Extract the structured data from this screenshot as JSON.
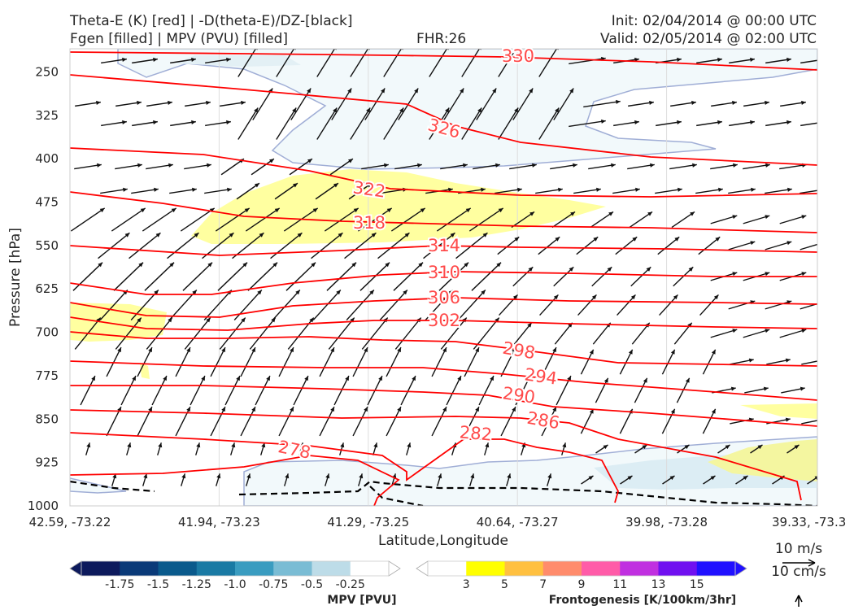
{
  "header": {
    "title_left_1": "Theta-E (K) [red] | -D(theta-E)/DZ-[black]",
    "title_left_2": "Fgen [filled] | MPV (PVU) [filled]",
    "fhr": "FHR:26",
    "init": "Init: 02/04/2014 @ 00:00 UTC",
    "valid": "Valid: 02/05/2014 @ 02:00 UTC"
  },
  "chart_data": {
    "type": "cross-section",
    "xlabel": "Latitude,Longitude",
    "ylabel": "Pressure [hPa]",
    "ylim": [
      1000,
      210
    ],
    "x_ticks": [
      "42.59, -73.22",
      "41.94, -73.23",
      "41.29, -73.25",
      "40.64, -73.27",
      "39.98, -73.28",
      "39.33, -73.3"
    ],
    "y_ticks": [
      250,
      325,
      400,
      475,
      550,
      625,
      700,
      775,
      850,
      925,
      1000
    ],
    "theta_e_contours": [
      {
        "value": 330,
        "label": "330"
      },
      {
        "value": 326,
        "label": "326"
      },
      {
        "value": 322,
        "label": "322"
      },
      {
        "value": 318,
        "label": "318"
      },
      {
        "value": 314,
        "label": "314"
      },
      {
        "value": 310,
        "label": "310"
      },
      {
        "value": 306,
        "label": "306"
      },
      {
        "value": 302,
        "label": "302"
      },
      {
        "value": 298,
        "label": "298"
      },
      {
        "value": 294,
        "label": "294"
      },
      {
        "value": 290,
        "label": "290"
      },
      {
        "value": 286,
        "label": "286"
      },
      {
        "value": 282,
        "label": "282"
      },
      {
        "value": 278,
        "label": "278"
      }
    ],
    "wind_reference": {
      "horizontal": "10 m/s",
      "vertical": "10 cm/s"
    },
    "colorbars": [
      {
        "name": "MPV [PVU]",
        "ticks": [
          "-1.75",
          "-1.5",
          "-1.25",
          "-1.0",
          "-0.75",
          "-0.5",
          "-0.25"
        ],
        "colors": [
          "#0d1a5c",
          "#0a3a78",
          "#0a5a8c",
          "#1a7aa4",
          "#3a9cc0",
          "#7abcd4",
          "#bddce8",
          "#ffffff"
        ]
      },
      {
        "name": "Frontogenesis [K/100km/3hr]",
        "ticks": [
          "3",
          "5",
          "7",
          "9",
          "11",
          "13",
          "15"
        ],
        "colors": [
          "#ffffff",
          "#ffff00",
          "#ffc040",
          "#ff8c6c",
          "#ff5ca8",
          "#c030e0",
          "#7010f0",
          "#2010ff"
        ]
      }
    ],
    "colors": {
      "theta_e": "#ff0000",
      "stability": "#000000",
      "contour_label": "#ff4a4a"
    }
  }
}
